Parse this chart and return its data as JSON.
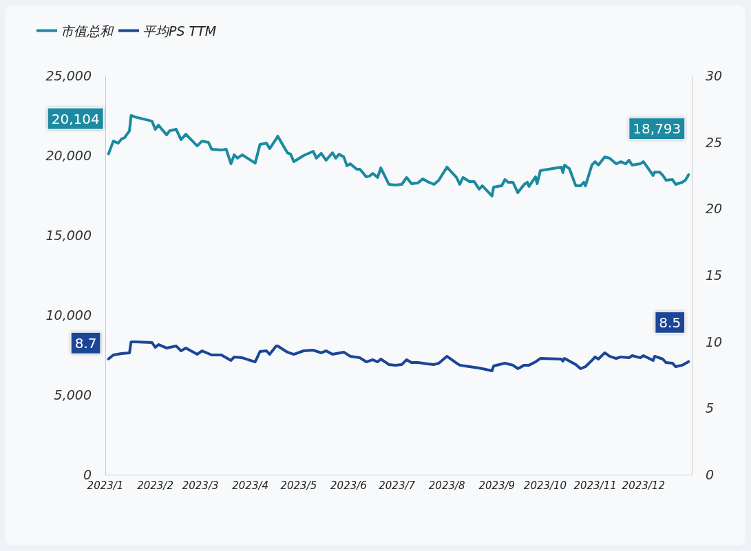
{
  "chart_data": {
    "type": "line",
    "legend": "top left",
    "grid": false,
    "marker": "none",
    "line_style": "solid",
    "xlim": [
      "2023-01-01",
      "2023-12-31"
    ],
    "xticks": [
      {
        "value": "2023-01-01",
        "label": "2023/1"
      },
      {
        "value": "2023-02-01",
        "label": "2023/2"
      },
      {
        "value": "2023-03-01",
        "label": "2023/3"
      },
      {
        "value": "2023-04-01",
        "label": "2023/4"
      },
      {
        "value": "2023-05-01",
        "label": "2023/5"
      },
      {
        "value": "2023-06-01",
        "label": "2023/6"
      },
      {
        "value": "2023-07-01",
        "label": "2023/7"
      },
      {
        "value": "2023-08-01",
        "label": "2023/8"
      },
      {
        "value": "2023-09-01",
        "label": "2023/9"
      },
      {
        "value": "2023-10-01",
        "label": "2023/10"
      },
      {
        "value": "2023-11-01",
        "label": "2023/11"
      },
      {
        "value": "2023-12-01",
        "label": "2023/12"
      }
    ],
    "ylim": [
      0,
      25000
    ],
    "yticks": [
      {
        "value": 0,
        "label": "0"
      },
      {
        "value": 5000,
        "label": "5,000"
      },
      {
        "value": 10000,
        "label": "10,000"
      },
      {
        "value": 15000,
        "label": "15,000"
      },
      {
        "value": 20000,
        "label": "20,000"
      },
      {
        "value": 25000,
        "label": "25,000"
      }
    ],
    "y2lim": [
      0,
      30
    ],
    "y2ticks": [
      0,
      5,
      10,
      15,
      20,
      25,
      30
    ],
    "series": [
      {
        "name": "市值总和",
        "color": "#1a8aa0",
        "x": [
          "2023-01-03",
          "2023-01-06",
          "2023-01-09",
          "2023-01-11",
          "2023-01-13",
          "2023-01-16",
          "2023-01-17",
          "2023-01-20",
          "2023-01-30",
          "2023-02-01",
          "2023-02-03",
          "2023-02-08",
          "2023-02-10",
          "2023-02-14",
          "2023-02-17",
          "2023-02-20",
          "2023-02-27",
          "2023-03-02",
          "2023-03-06",
          "2023-03-08",
          "2023-03-14",
          "2023-03-17",
          "2023-03-20",
          "2023-03-22",
          "2023-03-24",
          "2023-03-27",
          "2023-04-04",
          "2023-04-07",
          "2023-04-11",
          "2023-04-13",
          "2023-04-17",
          "2023-04-18",
          "2023-04-24",
          "2023-04-26",
          "2023-04-28",
          "2023-05-04",
          "2023-05-10",
          "2023-05-12",
          "2023-05-15",
          "2023-05-18",
          "2023-05-22",
          "2023-05-24",
          "2023-05-26",
          "2023-05-29",
          "2023-05-31",
          "2023-06-02",
          "2023-06-06",
          "2023-06-08",
          "2023-06-12",
          "2023-06-14",
          "2023-06-16",
          "2023-06-19",
          "2023-06-21",
          "2023-06-26",
          "2023-06-30",
          "2023-07-04",
          "2023-07-07",
          "2023-07-10",
          "2023-07-14",
          "2023-07-17",
          "2023-07-20",
          "2023-07-24",
          "2023-07-27",
          "2023-08-01",
          "2023-08-07",
          "2023-08-09",
          "2023-08-11",
          "2023-08-15",
          "2023-08-18",
          "2023-08-21",
          "2023-08-23",
          "2023-08-29",
          "2023-08-30",
          "2023-09-04",
          "2023-09-06",
          "2023-09-08",
          "2023-09-11",
          "2023-09-14",
          "2023-09-18",
          "2023-09-20",
          "2023-09-21",
          "2023-09-25",
          "2023-09-26",
          "2023-09-28",
          "2023-10-11",
          "2023-10-12",
          "2023-10-13",
          "2023-10-16",
          "2023-10-20",
          "2023-10-23",
          "2023-10-25",
          "2023-10-26",
          "2023-10-30",
          "2023-11-01",
          "2023-11-03",
          "2023-11-07",
          "2023-11-10",
          "2023-11-14",
          "2023-11-17",
          "2023-11-20",
          "2023-11-22",
          "2023-11-24",
          "2023-11-29",
          "2023-12-01",
          "2023-12-07",
          "2023-12-08",
          "2023-12-11",
          "2023-12-13",
          "2023-12-15",
          "2023-12-19",
          "2023-12-21",
          "2023-12-25",
          "2023-12-27",
          "2023-12-29"
        ],
        "values": [
          20104,
          20900,
          20770,
          21030,
          21120,
          21550,
          22500,
          22400,
          22150,
          21640,
          21900,
          21290,
          21550,
          21640,
          20990,
          21330,
          20600,
          20900,
          20820,
          20390,
          20340,
          20390,
          19480,
          20040,
          19830,
          20040,
          19520,
          20690,
          20770,
          20430,
          21030,
          21210,
          20170,
          20080,
          19610,
          19990,
          20260,
          19830,
          20130,
          19700,
          20170,
          19830,
          20080,
          19910,
          19350,
          19480,
          19140,
          19140,
          18660,
          18710,
          18880,
          18620,
          19220,
          18190,
          18150,
          18190,
          18620,
          18230,
          18280,
          18530,
          18360,
          18190,
          18450,
          19270,
          18620,
          18190,
          18620,
          18360,
          18360,
          17890,
          18100,
          17460,
          18020,
          18100,
          18490,
          18320,
          18320,
          17670,
          18190,
          18320,
          18060,
          18660,
          18230,
          19050,
          19270,
          18920,
          19400,
          19180,
          18100,
          18100,
          18320,
          18100,
          19400,
          19610,
          19400,
          19910,
          19830,
          19480,
          19610,
          19480,
          19700,
          19400,
          19480,
          19610,
          18750,
          18960,
          18960,
          18750,
          18450,
          18490,
          18190,
          18320,
          18450,
          18793
        ],
        "value_labels": [
          "20,104",
          null,
          null,
          null,
          null,
          null,
          null,
          null,
          null,
          null,
          null,
          null,
          null,
          null,
          null,
          null,
          null,
          null,
          null,
          null,
          null,
          null,
          null,
          null,
          null,
          null,
          null,
          null,
          null,
          null,
          null,
          null,
          null,
          null,
          null,
          null,
          null,
          null,
          null,
          null,
          null,
          null,
          null,
          null,
          null,
          null,
          null,
          null,
          null,
          null,
          null,
          null,
          null,
          null,
          null,
          null,
          null,
          null,
          null,
          null,
          null,
          null,
          null,
          null,
          null,
          null,
          null,
          null,
          null,
          null,
          null,
          null,
          null,
          null,
          null,
          null,
          null,
          null,
          null,
          null,
          null,
          null,
          null,
          null,
          null,
          null,
          null,
          null,
          null,
          null,
          null,
          null,
          null,
          null,
          null,
          null,
          null,
          null,
          null,
          null,
          null,
          null,
          null,
          null,
          null,
          null,
          null,
          null,
          null,
          null,
          null,
          null,
          null,
          "18,793"
        ]
      },
      {
        "name": "平均PS TTM",
        "color": "#1b4596",
        "axis": "y2",
        "x": [
          "2023-01-03",
          "2023-01-06",
          "2023-01-11",
          "2023-01-16",
          "2023-01-17",
          "2023-01-20",
          "2023-01-30",
          "2023-02-01",
          "2023-02-03",
          "2023-02-08",
          "2023-02-14",
          "2023-02-17",
          "2023-02-20",
          "2023-02-27",
          "2023-03-02",
          "2023-03-08",
          "2023-03-14",
          "2023-03-20",
          "2023-03-22",
          "2023-03-27",
          "2023-04-04",
          "2023-04-07",
          "2023-04-11",
          "2023-04-13",
          "2023-04-17",
          "2023-04-18",
          "2023-04-24",
          "2023-04-28",
          "2023-05-04",
          "2023-05-10",
          "2023-05-15",
          "2023-05-18",
          "2023-05-22",
          "2023-05-29",
          "2023-06-02",
          "2023-06-08",
          "2023-06-12",
          "2023-06-16",
          "2023-06-19",
          "2023-06-21",
          "2023-06-26",
          "2023-06-30",
          "2023-07-04",
          "2023-07-07",
          "2023-07-10",
          "2023-07-14",
          "2023-07-20",
          "2023-07-24",
          "2023-07-27",
          "2023-08-01",
          "2023-08-07",
          "2023-08-09",
          "2023-08-15",
          "2023-08-21",
          "2023-08-29",
          "2023-08-30",
          "2023-09-06",
          "2023-09-11",
          "2023-09-14",
          "2023-09-18",
          "2023-09-21",
          "2023-09-25",
          "2023-09-28",
          "2023-10-11",
          "2023-10-12",
          "2023-10-13",
          "2023-10-20",
          "2023-10-23",
          "2023-10-26",
          "2023-10-30",
          "2023-11-01",
          "2023-11-03",
          "2023-11-07",
          "2023-11-10",
          "2023-11-14",
          "2023-11-17",
          "2023-11-22",
          "2023-11-24",
          "2023-11-29",
          "2023-12-01",
          "2023-12-07",
          "2023-12-08",
          "2023-12-13",
          "2023-12-15",
          "2023-12-19",
          "2023-12-21",
          "2023-12-25",
          "2023-12-29"
        ],
        "values": [
          8.7,
          9.0,
          9.1,
          9.16,
          9.98,
          9.98,
          9.93,
          9.57,
          9.78,
          9.52,
          9.67,
          9.31,
          9.52,
          9.05,
          9.31,
          9.0,
          9.0,
          8.59,
          8.85,
          8.79,
          8.48,
          9.26,
          9.31,
          9.05,
          9.67,
          9.67,
          9.21,
          9.05,
          9.31,
          9.36,
          9.16,
          9.31,
          9.05,
          9.21,
          8.9,
          8.79,
          8.48,
          8.64,
          8.48,
          8.69,
          8.28,
          8.23,
          8.28,
          8.64,
          8.43,
          8.43,
          8.33,
          8.28,
          8.38,
          8.9,
          8.38,
          8.23,
          8.12,
          8.02,
          7.81,
          8.17,
          8.38,
          8.23,
          7.97,
          8.23,
          8.23,
          8.48,
          8.74,
          8.69,
          8.54,
          8.74,
          8.28,
          7.97,
          8.12,
          8.59,
          8.85,
          8.69,
          9.16,
          8.9,
          8.74,
          8.85,
          8.79,
          8.95,
          8.79,
          8.95,
          8.59,
          8.9,
          8.69,
          8.43,
          8.38,
          8.12,
          8.23,
          8.5
        ],
        "value_labels": [
          "8.7",
          null,
          null,
          null,
          null,
          null,
          null,
          null,
          null,
          null,
          null,
          null,
          null,
          null,
          null,
          null,
          null,
          null,
          null,
          null,
          null,
          null,
          null,
          null,
          null,
          null,
          null,
          null,
          null,
          null,
          null,
          null,
          null,
          null,
          null,
          null,
          null,
          null,
          null,
          null,
          null,
          null,
          null,
          null,
          null,
          null,
          null,
          null,
          null,
          null,
          null,
          null,
          null,
          null,
          null,
          null,
          null,
          null,
          null,
          null,
          null,
          null,
          null,
          null,
          null,
          null,
          null,
          null,
          null,
          null,
          null,
          null,
          null,
          null,
          null,
          null,
          null,
          null,
          null,
          null,
          null,
          null,
          null,
          null,
          null,
          null,
          null,
          "8.5"
        ]
      }
    ]
  }
}
